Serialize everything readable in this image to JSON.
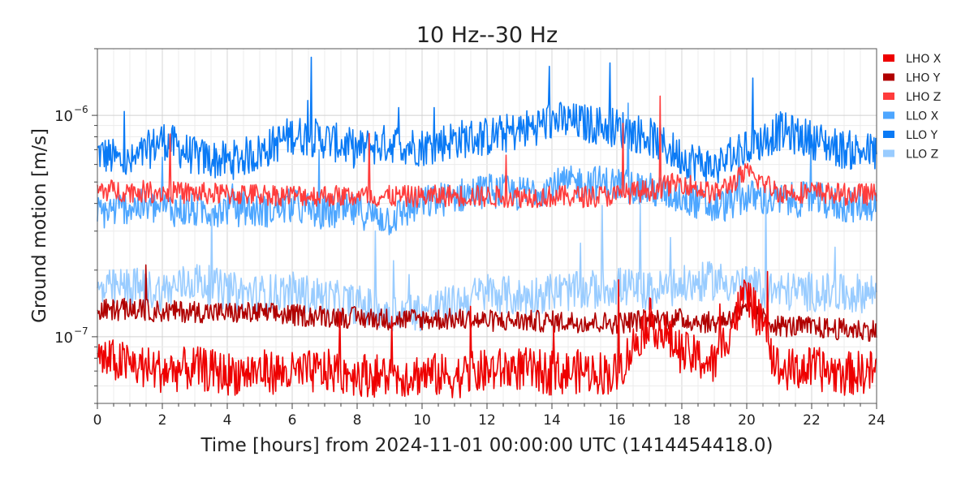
{
  "chart_data": {
    "type": "line",
    "title": "10 Hz--30 Hz",
    "xlabel": "Time [hours] from 2024-11-01 00:00:00 UTC (1414454418.0)",
    "ylabel": "Ground motion [m/s]",
    "x_ticks": [
      "0",
      "2",
      "4",
      "6",
      "8",
      "10",
      "12",
      "14",
      "16",
      "18",
      "20",
      "22",
      "24"
    ],
    "y_tick_labels": [
      {
        "value": 1e-07,
        "base": "10",
        "exp": "−7"
      },
      {
        "value": 1e-06,
        "base": "10",
        "exp": "−6"
      }
    ],
    "xlim": [
      0,
      24
    ],
    "ylim": [
      5e-08,
      2e-06
    ],
    "y_scale": "log",
    "grid": true,
    "legend_placement": "outside-right-top",
    "series": [
      {
        "name": "LHO X",
        "color": "#ee0000",
        "values": [
          [
            0,
            8e-08
          ],
          [
            1,
            7.5e-08
          ],
          [
            2,
            7e-08
          ],
          [
            3,
            7.2e-08
          ],
          [
            4,
            6.8e-08
          ],
          [
            5,
            7e-08
          ],
          [
            6,
            6.8e-08
          ],
          [
            7,
            7e-08
          ],
          [
            8,
            6.8e-08
          ],
          [
            9,
            6.6e-08
          ],
          [
            10,
            6.8e-08
          ],
          [
            11,
            6.6e-08
          ],
          [
            12,
            7e-08
          ],
          [
            13,
            7.2e-08
          ],
          [
            14,
            6.8e-08
          ],
          [
            15,
            7e-08
          ],
          [
            16,
            6.8e-08
          ],
          [
            17,
            1.2e-07
          ],
          [
            18,
            8.5e-08
          ],
          [
            19,
            7.5e-08
          ],
          [
            20,
            1.6e-07
          ],
          [
            21,
            7e-08
          ],
          [
            22,
            7.2e-08
          ],
          [
            23,
            6.8e-08
          ],
          [
            24,
            7e-08
          ]
        ]
      },
      {
        "name": "LHO Y",
        "color": "#b00000",
        "values": [
          [
            0,
            1.32e-07
          ],
          [
            1,
            1.33e-07
          ],
          [
            2,
            1.3e-07
          ],
          [
            3,
            1.3e-07
          ],
          [
            4,
            1.28e-07
          ],
          [
            5,
            1.28e-07
          ],
          [
            6,
            1.25e-07
          ],
          [
            7,
            1.24e-07
          ],
          [
            8,
            1.22e-07
          ],
          [
            9,
            1.2e-07
          ],
          [
            10,
            1.2e-07
          ],
          [
            11,
            1.2e-07
          ],
          [
            12,
            1.18e-07
          ],
          [
            13,
            1.18e-07
          ],
          [
            14,
            1.17e-07
          ],
          [
            15,
            1.17e-07
          ],
          [
            16,
            1.15e-07
          ],
          [
            17,
            1.2e-07
          ],
          [
            18,
            1.2e-07
          ],
          [
            19,
            1.15e-07
          ],
          [
            20,
            1.3e-07
          ],
          [
            21,
            1.12e-07
          ],
          [
            22,
            1.1e-07
          ],
          [
            23,
            1.08e-07
          ],
          [
            24,
            1.07e-07
          ]
        ]
      },
      {
        "name": "LHO Z",
        "color": "#ff3c3c",
        "values": [
          [
            0,
            4.6e-07
          ],
          [
            1,
            4.55e-07
          ],
          [
            2,
            4.5e-07
          ],
          [
            3,
            4.45e-07
          ],
          [
            4,
            4.4e-07
          ],
          [
            5,
            4.4e-07
          ],
          [
            6,
            4.35e-07
          ],
          [
            7,
            4.35e-07
          ],
          [
            8,
            4.3e-07
          ],
          [
            9,
            4.3e-07
          ],
          [
            10,
            4.3e-07
          ],
          [
            11,
            4.35e-07
          ],
          [
            12,
            4.3e-07
          ],
          [
            13,
            4.3e-07
          ],
          [
            14,
            4.3e-07
          ],
          [
            15,
            4.3e-07
          ],
          [
            16,
            4.35e-07
          ],
          [
            17,
            4.6e-07
          ],
          [
            18,
            5e-07
          ],
          [
            19,
            4.4e-07
          ],
          [
            20,
            5.5e-07
          ],
          [
            21,
            4.5e-07
          ],
          [
            22,
            4.5e-07
          ],
          [
            23,
            4.4e-07
          ],
          [
            24,
            4.4e-07
          ]
        ]
      },
      {
        "name": "LLO X",
        "color": "#4da6ff",
        "values": [
          [
            0,
            3.6e-07
          ],
          [
            1,
            3.9e-07
          ],
          [
            2,
            3.8e-07
          ],
          [
            3,
            3.7e-07
          ],
          [
            4,
            3.8e-07
          ],
          [
            5,
            3.7e-07
          ],
          [
            6,
            3.9e-07
          ],
          [
            7,
            3.6e-07
          ],
          [
            8,
            3.7e-07
          ],
          [
            9,
            3.4e-07
          ],
          [
            10,
            4e-07
          ],
          [
            11,
            4.3e-07
          ],
          [
            12,
            4.6e-07
          ],
          [
            13,
            4.4e-07
          ],
          [
            14,
            4.8e-07
          ],
          [
            15,
            5e-07
          ],
          [
            16,
            4.9e-07
          ],
          [
            17,
            4.6e-07
          ],
          [
            18,
            4.3e-07
          ],
          [
            19,
            3.8e-07
          ],
          [
            20,
            4.3e-07
          ],
          [
            21,
            4.1e-07
          ],
          [
            22,
            4.2e-07
          ],
          [
            23,
            3.9e-07
          ],
          [
            24,
            4e-07
          ]
        ]
      },
      {
        "name": "LLO Y",
        "color": "#0a7af5",
        "values": [
          [
            0,
            6.8e-07
          ],
          [
            1,
            6e-07
          ],
          [
            2,
            7.8e-07
          ],
          [
            3,
            6.5e-07
          ],
          [
            4,
            6.2e-07
          ],
          [
            5,
            6.8e-07
          ],
          [
            6,
            8.2e-07
          ],
          [
            7,
            7.8e-07
          ],
          [
            8,
            7e-07
          ],
          [
            9,
            7.5e-07
          ],
          [
            10,
            7.2e-07
          ],
          [
            11,
            7.8e-07
          ],
          [
            12,
            8e-07
          ],
          [
            13,
            8.5e-07
          ],
          [
            14,
            9.5e-07
          ],
          [
            15,
            9.2e-07
          ],
          [
            16,
            8.8e-07
          ],
          [
            17,
            8e-07
          ],
          [
            18,
            6.5e-07
          ],
          [
            19,
            5.8e-07
          ],
          [
            20,
            7e-07
          ],
          [
            21,
            8.5e-07
          ],
          [
            22,
            7.8e-07
          ],
          [
            23,
            7e-07
          ],
          [
            24,
            6.8e-07
          ]
        ]
      },
      {
        "name": "LLO Z",
        "color": "#99ccff",
        "values": [
          [
            0,
            1.6e-07
          ],
          [
            1,
            1.7e-07
          ],
          [
            2,
            1.6e-07
          ],
          [
            3,
            1.8e-07
          ],
          [
            4,
            1.6e-07
          ],
          [
            5,
            1.55e-07
          ],
          [
            6,
            1.6e-07
          ],
          [
            7,
            1.5e-07
          ],
          [
            8,
            1.4e-07
          ],
          [
            9,
            1.3e-07
          ],
          [
            10,
            1.3e-07
          ],
          [
            11,
            1.4e-07
          ],
          [
            12,
            1.6e-07
          ],
          [
            13,
            1.5e-07
          ],
          [
            14,
            1.6e-07
          ],
          [
            15,
            1.6e-07
          ],
          [
            16,
            1.7e-07
          ],
          [
            17,
            1.6e-07
          ],
          [
            18,
            1.7e-07
          ],
          [
            19,
            1.8e-07
          ],
          [
            20,
            1.7e-07
          ],
          [
            21,
            1.6e-07
          ],
          [
            22,
            1.6e-07
          ],
          [
            23,
            1.55e-07
          ],
          [
            24,
            1.6e-07
          ]
        ]
      }
    ]
  }
}
